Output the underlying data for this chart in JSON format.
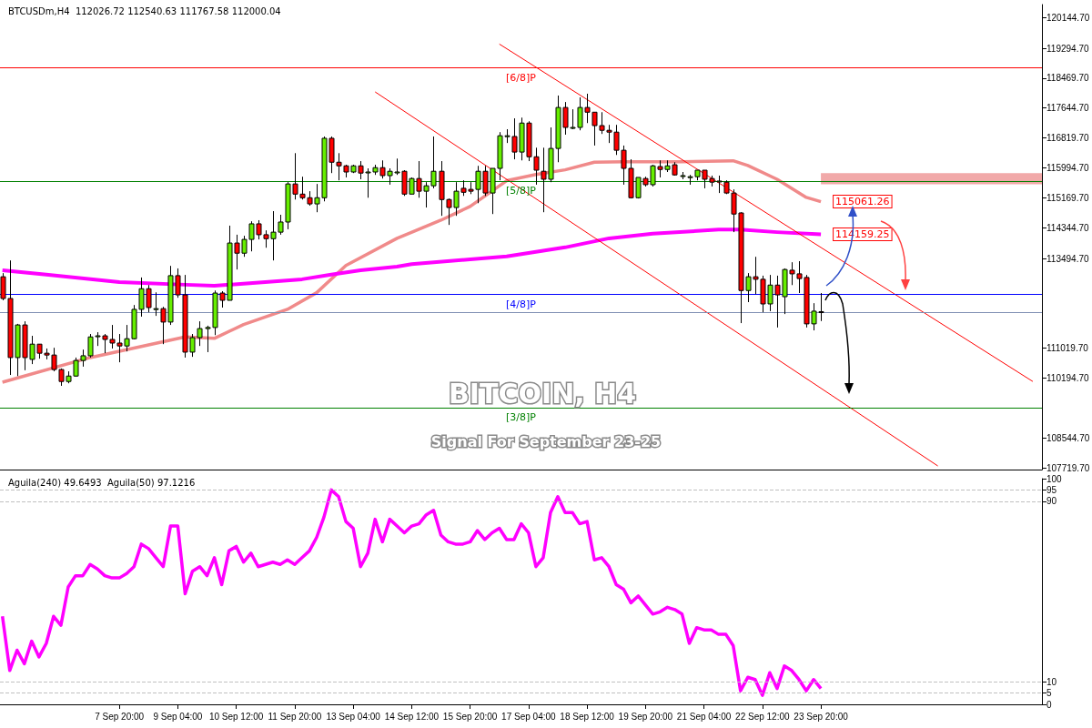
{
  "chart_data": [
    {
      "type": "candlestick",
      "title": "BTCUSDm,H4  112026.72 112540.63 111767.58 112000.04",
      "x": [
        "--09-05T04:00",
        "--09-05T08:00",
        "--09-05T12:00",
        "--09-05T16:00",
        "--09-05T20:00",
        "--09-06T00:00",
        "--09-06T04:00",
        "--09-06T08:00",
        "--09-06T12:00",
        "--09-06T16:00",
        "--09-06T20:00",
        "--09-07T00:00",
        "--09-07T04:00",
        "--09-07T08:00",
        "--09-07T12:00",
        "--09-07T16:00",
        "--09-07T20:00",
        "--09-08T00:00",
        "--09-08T04:00",
        "--09-08T08:00",
        "--09-08T12:00",
        "--09-08T16:00",
        "--09-08T20:00",
        "--09-09T00:00",
        "--09-09T04:00",
        "--09-09T08:00",
        "--09-09T12:00",
        "--09-09T16:00",
        "--09-09T20:00",
        "--09-10T00:00",
        "--09-10T04:00",
        "--09-10T08:00",
        "--09-10T12:00",
        "--09-10T16:00",
        "--09-10T20:00",
        "--09-11T00:00",
        "--09-11T04:00",
        "--09-11T08:00",
        "--09-11T12:00",
        "--09-11T16:00",
        "--09-11T20:00",
        "--09-12T00:00",
        "--09-12T04:00",
        "--09-12T08:00",
        "--09-12T12:00",
        "--09-12T16:00",
        "--09-12T20:00",
        "--09-13T00:00",
        "--09-13T04:00",
        "--09-13T08:00",
        "--09-13T12:00",
        "--09-13T16:00",
        "--09-13T20:00",
        "--09-14T00:00",
        "--09-14T04:00",
        "--09-14T08:00",
        "--09-14T12:00",
        "--09-14T16:00",
        "--09-14T20:00",
        "--09-15T00:00",
        "--09-15T04:00",
        "--09-15T08:00",
        "--09-15T12:00",
        "--09-15T16:00",
        "--09-15T20:00",
        "--09-16T00:00",
        "--09-16T04:00",
        "--09-16T08:00",
        "--09-16T12:00",
        "--09-16T16:00",
        "--09-16T20:00",
        "--09-17T00:00",
        "--09-17T04:00",
        "--09-17T08:00",
        "--09-17T12:00",
        "--09-17T16:00",
        "--09-17T20:00",
        "--09-18T00:00",
        "--09-18T04:00",
        "--09-18T08:00",
        "--09-18T12:00",
        "--09-18T16:00",
        "--09-18T20:00",
        "--09-19T00:00",
        "--09-19T04:00",
        "--09-19T08:00",
        "--09-19T12:00",
        "--09-19T16:00",
        "--09-19T20:00",
        "--09-20T00:00",
        "--09-20T04:00",
        "--09-20T08:00",
        "--09-20T12:00",
        "--09-20T16:00",
        "--09-20T20:00",
        "--09-21T00:00",
        "--09-21T04:00",
        "--09-21T08:00",
        "--09-21T12:00",
        "--09-21T16:00",
        "--09-21T20:00",
        "--09-22T00:00",
        "--09-22T04:00",
        "--09-22T08:00",
        "--09-22T12:00",
        "--09-22T16:00",
        "--09-22T20:00",
        "--09-23T00:00",
        "--09-23T04:00",
        "--09-23T08:00",
        "--09-23T12:00",
        "--09-23T16:00",
        "--09-23T20:00"
      ],
      "ohlc": [
        [
          112990,
          113090,
          112340,
          112390
        ],
        [
          112390,
          113440,
          110280,
          110760
        ],
        [
          110760,
          111690,
          110250,
          111660
        ],
        [
          111660,
          111760,
          110410,
          110760
        ],
        [
          110710,
          111360,
          110580,
          111130
        ],
        [
          111130,
          111130,
          110730,
          110880
        ],
        [
          110880,
          111010,
          110710,
          110830
        ],
        [
          110830,
          111030,
          110380,
          110430
        ],
        [
          110430,
          110460,
          109980,
          110100
        ],
        [
          110100,
          110380,
          110050,
          110250
        ],
        [
          110250,
          110760,
          110230,
          110680
        ],
        [
          110680,
          110980,
          110510,
          110810
        ],
        [
          110810,
          111410,
          110760,
          111330
        ],
        [
          111360,
          111460,
          111080,
          111360
        ],
        [
          111360,
          111410,
          110880,
          111260
        ],
        [
          111260,
          111660,
          111010,
          111160
        ],
        [
          111160,
          111410,
          110630,
          111080
        ],
        [
          111080,
          111660,
          110930,
          111280
        ],
        [
          111280,
          112210,
          111260,
          112090
        ],
        [
          112090,
          112970,
          111890,
          112660
        ],
        [
          112660,
          112760,
          112010,
          112140
        ],
        [
          112110,
          112560,
          111910,
          112110
        ],
        [
          112110,
          112160,
          111130,
          111740
        ],
        [
          111740,
          113290,
          111660,
          113020
        ],
        [
          113020,
          113220,
          112410,
          112490
        ],
        [
          112490,
          113040,
          110760,
          110910
        ],
        [
          110910,
          111410,
          110780,
          111310
        ],
        [
          111310,
          111760,
          111080,
          111560
        ],
        [
          111560,
          111640,
          110910,
          111590
        ],
        [
          111590,
          112610,
          111380,
          112540
        ],
        [
          112540,
          112590,
          112140,
          112340
        ],
        [
          112340,
          114400,
          112340,
          113920
        ],
        [
          113920,
          114150,
          113190,
          113640
        ],
        [
          113640,
          114120,
          113540,
          114020
        ],
        [
          114020,
          114520,
          113690,
          114450
        ],
        [
          114450,
          114550,
          114020,
          114150
        ],
        [
          114150,
          114270,
          113790,
          114040
        ],
        [
          114040,
          114800,
          113440,
          114220
        ],
        [
          114220,
          114700,
          114150,
          114500
        ],
        [
          114500,
          115600,
          114300,
          115550
        ],
        [
          115550,
          116400,
          115120,
          115270
        ],
        [
          115270,
          115750,
          115120,
          115170
        ],
        [
          115170,
          115350,
          114950,
          115000
        ],
        [
          115000,
          115550,
          114770,
          115170
        ],
        [
          115170,
          116860,
          115070,
          116810
        ],
        [
          116810,
          116860,
          115850,
          116150
        ],
        [
          116150,
          116400,
          115650,
          116050
        ],
        [
          116050,
          116080,
          115730,
          115880
        ],
        [
          115880,
          116080,
          115850,
          116050
        ],
        [
          116050,
          116180,
          115680,
          115850
        ],
        [
          115880,
          115980,
          115170,
          115880
        ],
        [
          115880,
          116080,
          115800,
          116000
        ],
        [
          116000,
          116200,
          115700,
          115780
        ],
        [
          115780,
          115980,
          115530,
          115900
        ],
        [
          115880,
          116250,
          115800,
          115880
        ],
        [
          115900,
          115930,
          115220,
          115270
        ],
        [
          115270,
          115730,
          115270,
          115700
        ],
        [
          115700,
          116180,
          115170,
          115350
        ],
        [
          115350,
          115600,
          114900,
          115500
        ],
        [
          115500,
          116860,
          115430,
          115900
        ],
        [
          115900,
          116180,
          114670,
          115120
        ],
        [
          115120,
          115150,
          114420,
          114900
        ],
        [
          114900,
          115600,
          114670,
          115350
        ],
        [
          115430,
          115650,
          115220,
          115320
        ],
        [
          115400,
          115600,
          115270,
          115350
        ],
        [
          115400,
          116050,
          115020,
          115900
        ],
        [
          115900,
          116050,
          115220,
          115300
        ],
        [
          115300,
          115980,
          114720,
          115980
        ],
        [
          115980,
          116980,
          115650,
          116880
        ],
        [
          116880,
          117060,
          116680,
          116880
        ],
        [
          116860,
          117360,
          116230,
          116430
        ],
        [
          116430,
          117380,
          116200,
          117230
        ],
        [
          117230,
          117280,
          116180,
          116300
        ],
        [
          116300,
          116550,
          115530,
          115930
        ],
        [
          115900,
          116550,
          114770,
          115680
        ],
        [
          115680,
          117110,
          115600,
          116530
        ],
        [
          116530,
          117990,
          116150,
          117660
        ],
        [
          117660,
          117810,
          116910,
          117110
        ],
        [
          117110,
          117610,
          117060,
          117110
        ],
        [
          117110,
          117940,
          117030,
          117660
        ],
        [
          117660,
          118040,
          117230,
          117530
        ],
        [
          117530,
          117530,
          116610,
          117160
        ],
        [
          117160,
          117530,
          116930,
          117030
        ],
        [
          117030,
          117180,
          116680,
          116980
        ],
        [
          116980,
          117180,
          116350,
          116480
        ],
        [
          116480,
          116610,
          115530,
          115980
        ],
        [
          115980,
          116230,
          115150,
          115170
        ],
        [
          115170,
          115730,
          115150,
          115730
        ],
        [
          115700,
          115750,
          115480,
          115530
        ],
        [
          115530,
          116080,
          115480,
          116050
        ],
        [
          116030,
          116200,
          115730,
          115950
        ],
        [
          115950,
          116200,
          115880,
          116050
        ],
        [
          116080,
          116150,
          115780,
          115800
        ],
        [
          115780,
          115880,
          115680,
          115780
        ],
        [
          115750,
          115800,
          115530,
          115750
        ],
        [
          115750,
          115930,
          115650,
          115930
        ],
        [
          115930,
          115930,
          115430,
          115680
        ],
        [
          115700,
          115780,
          115480,
          115600
        ],
        [
          115630,
          115780,
          115300,
          115630
        ],
        [
          115600,
          115650,
          115270,
          115300
        ],
        [
          115300,
          115400,
          114220,
          114720
        ],
        [
          114750,
          114770,
          111710,
          112610
        ],
        [
          112610,
          113090,
          112290,
          112990
        ],
        [
          112990,
          113540,
          112510,
          112920
        ],
        [
          112920,
          113020,
          112010,
          112240
        ],
        [
          112240,
          113040,
          112040,
          112760
        ],
        [
          112760,
          113020,
          111590,
          112490
        ],
        [
          112440,
          113220,
          111960,
          113190
        ],
        [
          113170,
          113390,
          112760,
          113070
        ],
        [
          113070,
          113420,
          112540,
          112940
        ],
        [
          112970,
          113040,
          111590,
          111690
        ],
        [
          111690,
          112260,
          111510,
          112040
        ],
        [
          112026.72,
          112540.63,
          111767.58,
          112000.04
        ]
      ],
      "series": [
        {
          "type": "line",
          "color": "#f08a8a",
          "x": [
            "--09-05T04:00",
            "--09-07T04:00",
            "--09-09T08:00",
            "--09-10T00:00",
            "--09-10T16:00",
            "--09-11T16:00",
            "--09-12T08:00",
            "--09-13T00:00",
            "--09-14T04:00",
            "--09-15T04:00",
            "--09-15T20:00",
            "--09-16T16:00",
            "--09-17T08:00",
            "--09-18T00:00",
            "--09-18T16:00",
            "--09-19T08:00",
            "--09-20T16:00",
            "--09-21T20:00",
            "--09-22T04:00",
            "--09-22T20:00",
            "--09-23T12:00",
            "--09-23T20:00"
          ],
          "values": [
            110080,
            110760,
            111330,
            111290,
            111670,
            112090,
            112550,
            113300,
            114050,
            114550,
            114930,
            115640,
            115810,
            115940,
            116150,
            116160,
            116160,
            116190,
            116060,
            115680,
            115180,
            115061.26
          ],
          "value_labels": [
            null,
            null,
            null,
            null,
            null,
            null,
            null,
            null,
            null,
            null,
            null,
            null,
            null,
            null,
            null,
            null,
            null,
            null,
            null,
            null,
            null,
            "115061.26"
          ]
        },
        {
          "type": "line",
          "color": "#ff00ff",
          "x": [
            "--09-05T04:00",
            "--09-06T04:00",
            "--09-07T20:00",
            "--09-09T08:00",
            "--09-10T00:00",
            "--09-10T16:00",
            "--09-12T00:00",
            "--09-12T16:00",
            "--09-13T08:00",
            "--09-14T04:00",
            "--09-14T12:00",
            "--09-15T20:00",
            "--09-16T16:00",
            "--09-18T00:00",
            "--09-19T00:00",
            "--09-20T00:00",
            "--09-21T12:00",
            "--09-22T00:00",
            "--09-22T20:00",
            "--09-23T20:00"
          ],
          "values": [
            113170,
            113050,
            112840,
            112770,
            112740,
            112800,
            112920,
            113050,
            113170,
            113270,
            113340,
            113470,
            113550,
            113800,
            114050,
            114180,
            114290,
            114290,
            114220,
            114159.25
          ],
          "value_labels": [
            null,
            null,
            null,
            null,
            null,
            null,
            null,
            null,
            null,
            null,
            null,
            null,
            null,
            null,
            null,
            null,
            null,
            null,
            null,
            "114159.25"
          ]
        },
        {
          "type": "line",
          "color": "#ff0000",
          "x": [
            "--09-16T12:00",
            "--09-28T16:00"
          ],
          "values": [
            119410,
            110100
          ]
        },
        {
          "type": "line",
          "color": "#ff0000",
          "x": [
            "--09-13T16:00",
            "--09-26T12:00"
          ],
          "values": [
            118090,
            107770
          ]
        }
      ],
      "xlim": [
        "--09-05T02:40",
        "--09-28T21:00"
      ],
      "ylim": [
        107670,
        120500
      ],
      "yticks": [
        {
          "value": 107719.7,
          "label": "107719.70"
        },
        {
          "value": 108544.7,
          "label": "108544.70"
        },
        {
          "value": 110194.7,
          "label": "110194.70"
        },
        {
          "value": 111019.7,
          "label": "111019.70"
        },
        {
          "value": 113494.7,
          "label": "113494.70"
        },
        {
          "value": 114344.7,
          "label": "114344.70"
        },
        {
          "value": 115169.7,
          "label": "115169.70"
        },
        {
          "value": 115994.7,
          "label": "115994.70"
        },
        {
          "value": 116819.7,
          "label": "116819.70"
        },
        {
          "value": 117644.7,
          "label": "117644.70"
        },
        {
          "value": 118469.7,
          "label": "118469.70"
        },
        {
          "value": 119294.7,
          "label": "119294.70"
        },
        {
          "value": 120144.7,
          "label": "120144.70"
        }
      ],
      "ref_lines": [
        {
          "axis": "y",
          "value": 118750,
          "label": "[6/8]P",
          "color": "#ff0000"
        },
        {
          "axis": "y",
          "value": 115625,
          "label": "[5/8]P",
          "color": "#008000"
        },
        {
          "axis": "y",
          "value": 112500,
          "label": "[4/8]P",
          "color": "#0000ff"
        },
        {
          "axis": "y",
          "value": 112000.04,
          "label": null,
          "color": "#7f8fb3"
        },
        {
          "axis": "y",
          "value": 109375,
          "label": "[3/8]P",
          "color": "#008000"
        }
      ],
      "bands": [
        {
          "axis": "y",
          "from": 115540,
          "to": 115850,
          "color": "#f0a0a0"
        }
      ],
      "annotations": [
        "BITCOIN, H4",
        "Signal For September 23-25"
      ],
      "tick_labels": "y"
    },
    {
      "type": "line",
      "title": "Aguila(240) 49.6493  Aguila(50) 97.1216",
      "color": "#ff00ff",
      "x": [
        "--09-05T04:00",
        "--09-05T08:00",
        "--09-05T12:00",
        "--09-05T16:00",
        "--09-05T20:00",
        "--09-06T00:00",
        "--09-06T04:00",
        "--09-06T08:00",
        "--09-06T12:00",
        "--09-06T16:00",
        "--09-06T20:00",
        "--09-07T00:00",
        "--09-07T04:00",
        "--09-07T08:00",
        "--09-07T12:00",
        "--09-07T16:00",
        "--09-07T20:00",
        "--09-08T00:00",
        "--09-08T04:00",
        "--09-08T08:00",
        "--09-08T12:00",
        "--09-08T16:00",
        "--09-08T20:00",
        "--09-09T00:00",
        "--09-09T04:00",
        "--09-09T08:00",
        "--09-09T12:00",
        "--09-09T16:00",
        "--09-09T20:00",
        "--09-10T00:00",
        "--09-10T04:00",
        "--09-10T08:00",
        "--09-10T12:00",
        "--09-10T16:00",
        "--09-10T20:00",
        "--09-11T00:00",
        "--09-11T04:00",
        "--09-11T08:00",
        "--09-11T12:00",
        "--09-11T16:00",
        "--09-11T20:00",
        "--09-12T00:00",
        "--09-12T04:00",
        "--09-12T08:00",
        "--09-12T12:00",
        "--09-12T16:00",
        "--09-12T20:00",
        "--09-13T00:00",
        "--09-13T04:00",
        "--09-13T08:00",
        "--09-13T12:00",
        "--09-13T16:00",
        "--09-13T20:00",
        "--09-14T00:00",
        "--09-14T04:00",
        "--09-14T08:00",
        "--09-14T12:00",
        "--09-14T16:00",
        "--09-14T20:00",
        "--09-15T00:00",
        "--09-15T04:00",
        "--09-15T08:00",
        "--09-15T12:00",
        "--09-15T16:00",
        "--09-15T20:00",
        "--09-16T00:00",
        "--09-16T04:00",
        "--09-16T08:00",
        "--09-16T12:00",
        "--09-16T16:00",
        "--09-16T20:00",
        "--09-17T00:00",
        "--09-17T04:00",
        "--09-17T08:00",
        "--09-17T12:00",
        "--09-17T16:00",
        "--09-17T20:00",
        "--09-18T00:00",
        "--09-18T04:00",
        "--09-18T08:00",
        "--09-18T12:00",
        "--09-18T16:00",
        "--09-18T20:00",
        "--09-19T00:00",
        "--09-19T04:00",
        "--09-19T08:00",
        "--09-19T12:00",
        "--09-19T16:00",
        "--09-19T20:00",
        "--09-20T00:00",
        "--09-20T04:00",
        "--09-20T08:00",
        "--09-20T12:00",
        "--09-20T16:00",
        "--09-20T20:00",
        "--09-21T00:00",
        "--09-21T04:00",
        "--09-21T08:00",
        "--09-21T12:00",
        "--09-21T16:00",
        "--09-21T20:00",
        "--09-22T00:00",
        "--09-22T04:00",
        "--09-22T08:00",
        "--09-22T12:00",
        "--09-22T16:00",
        "--09-22T20:00",
        "--09-23T00:00",
        "--09-23T04:00",
        "--09-23T08:00",
        "--09-23T12:00",
        "--09-23T16:00",
        "--09-23T20:00"
      ],
      "values": [
        39,
        15,
        24,
        18,
        28,
        21,
        27,
        39,
        35,
        52,
        57,
        57,
        62,
        60,
        57,
        56,
        56,
        58,
        61,
        71,
        69,
        65,
        61,
        79,
        79,
        49,
        59,
        61,
        57,
        65,
        53,
        68,
        70,
        63,
        67,
        61,
        62,
        63,
        62,
        64,
        62,
        65,
        68,
        74,
        83,
        95,
        92,
        81,
        78,
        61,
        67,
        82,
        72,
        82,
        79,
        76,
        79,
        80,
        84,
        86,
        75,
        72,
        71,
        71,
        72,
        77,
        73,
        76,
        78,
        73,
        73,
        80,
        76,
        61,
        65,
        85,
        92,
        85,
        85,
        80,
        81,
        64,
        65,
        61,
        53,
        51,
        45,
        48,
        44,
        40,
        41,
        43,
        42,
        40,
        27,
        34,
        33,
        33,
        31,
        31,
        26,
        6,
        12,
        11,
        4,
        14,
        7,
        17,
        15,
        11,
        6,
        11,
        7
      ],
      "xlim": [
        "--09-05T02:40",
        "--09-28T21:00"
      ],
      "xticks": [
        {
          "value": "--09-07T20:00",
          "label": "7 Sep 20:00"
        },
        {
          "value": "--09-09T04:00",
          "label": "9 Sep 04:00"
        },
        {
          "value": "--09-10T12:00",
          "label": "10 Sep 12:00"
        },
        {
          "value": "--09-11T20:00",
          "label": "11 Sep 20:00"
        },
        {
          "value": "--09-13T04:00",
          "label": "13 Sep 04:00"
        },
        {
          "value": "--09-14T12:00",
          "label": "14 Sep 12:00"
        },
        {
          "value": "--09-15T20:00",
          "label": "15 Sep 20:00"
        },
        {
          "value": "--09-17T04:00",
          "label": "17 Sep 04:00"
        },
        {
          "value": "--09-18T12:00",
          "label": "18 Sep 12:00"
        },
        {
          "value": "--09-19T20:00",
          "label": "19 Sep 20:00"
        },
        {
          "value": "--09-21T04:00",
          "label": "21 Sep 04:00"
        },
        {
          "value": "--09-22T12:00",
          "label": "22 Sep 12:00"
        },
        {
          "value": "--09-23T20:00",
          "label": "23 Sep 20:00"
        }
      ],
      "ylim": [
        0,
        100
      ],
      "yticks": [
        0,
        5,
        10,
        90,
        95,
        100
      ],
      "ref_lines": [
        {
          "axis": "y",
          "value": 5,
          "label": null,
          "color": "#c0c0c0",
          "line_style": "dashed"
        },
        {
          "axis": "y",
          "value": 10,
          "label": null,
          "color": "#c0c0c0",
          "line_style": "dashed"
        },
        {
          "axis": "y",
          "value": 90,
          "label": null,
          "color": "#c0c0c0",
          "line_style": "dashed"
        },
        {
          "axis": "y",
          "value": 95,
          "label": null,
          "color": "#c0c0c0",
          "line_style": "dashed"
        }
      ]
    }
  ]
}
